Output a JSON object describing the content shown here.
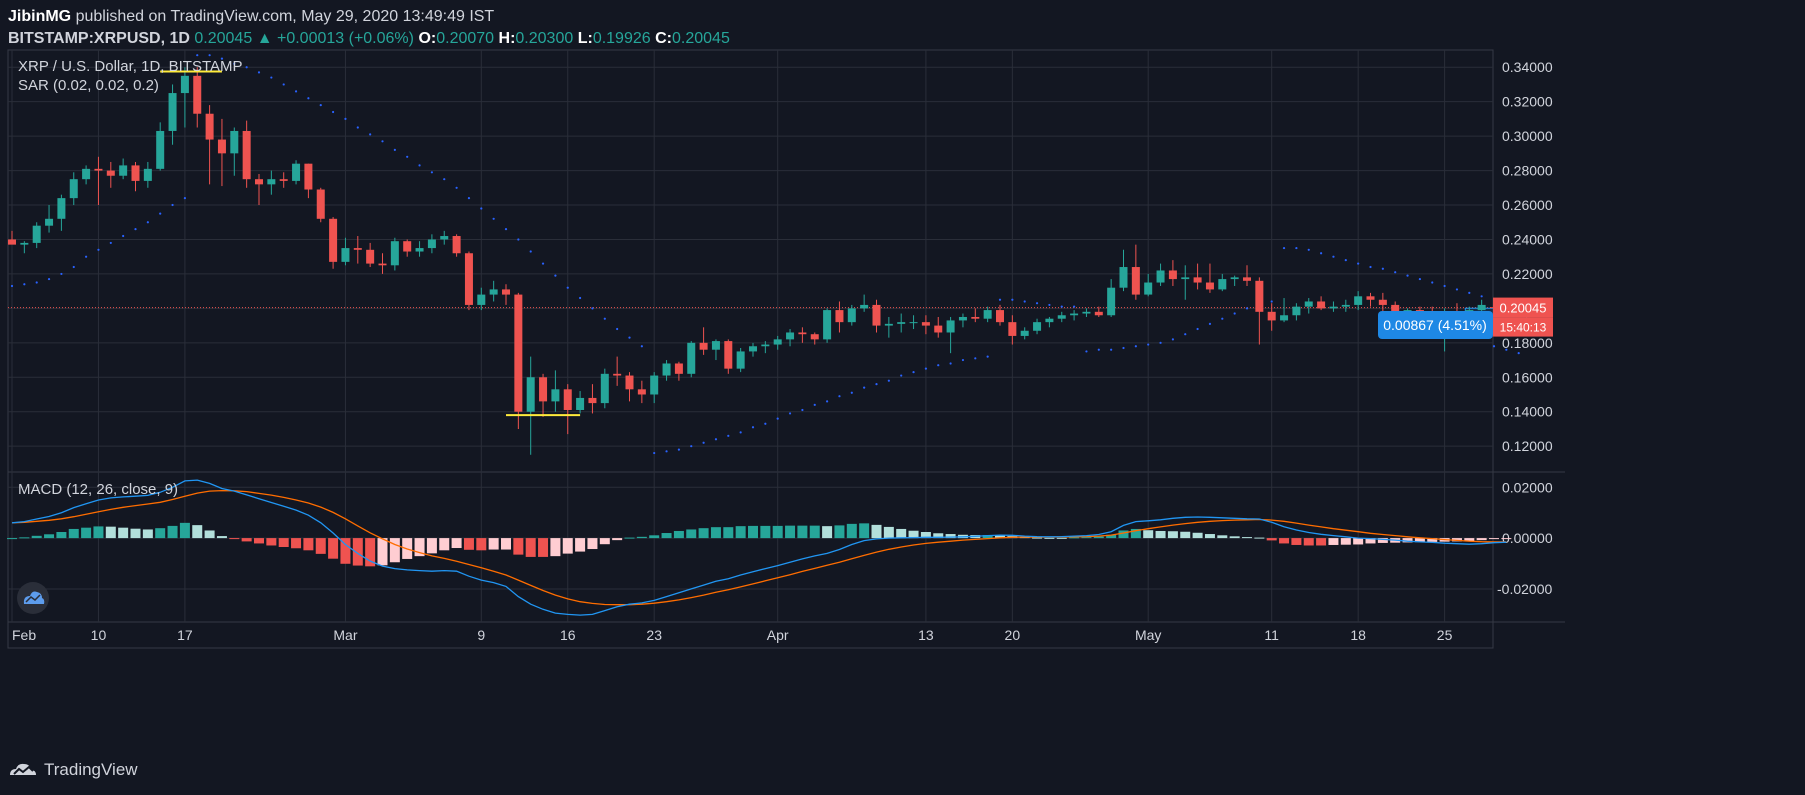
{
  "header": {
    "publisher": "JibinMG",
    "published_text": "published on TradingView.com, May 29, 2020 13:49:49 IST",
    "symbol": "BITSTAMP:XRPUSD, 1D",
    "last": "0.20045",
    "change": "+0.00013 (+0.06%)",
    "open_label": "O:",
    "open": "0.20070",
    "high_label": "H:",
    "high": "0.20300",
    "low_label": "L:",
    "low": "0.19926",
    "close_label": "C:",
    "close": "0.20045"
  },
  "legend": {
    "title": "XRP / U.S. Dollar, 1D, BITSTAMP",
    "sar": "SAR (0.02, 0.02, 0.2)",
    "macd": "MACD (12, 26, close, 9)"
  },
  "badges": {
    "measure": "0.00867 (4.51%)",
    "price": "0.20045",
    "countdown": "15:40:13"
  },
  "footer": {
    "brand": "TradingView",
    "logo_icon": "tradingview-logo-icon",
    "side_icon": "tradingview-cloud-icon"
  },
  "colors": {
    "up": "#26a69a",
    "down": "#ef5350",
    "bg": "#131722",
    "grid": "#2a2e39",
    "macd_line": "#2196f3",
    "signal_line": "#ff6d00",
    "sar": "#2962ff",
    "hist_up_strong": "#26a69a",
    "hist_up_weak": "#b2dfdb",
    "hist_down_strong": "#ef5350",
    "hist_down_weak": "#ffcdd2",
    "highlight": "#ffeb3b",
    "badge_blue": "#1e88e5"
  },
  "chart_data": {
    "type": "candlestick",
    "title": "XRP / U.S. Dollar, 1D, BITSTAMP",
    "x_ticks": [
      "Feb",
      "10",
      "17",
      "Mar",
      "9",
      "16",
      "23",
      "Apr",
      "13",
      "20",
      "May",
      "11",
      "18",
      "25"
    ],
    "price_ticks": [
      "0.34000",
      "0.32000",
      "0.30000",
      "0.28000",
      "0.26000",
      "0.24000",
      "0.22000",
      "0.20000",
      "0.18000",
      "0.16000",
      "0.14000",
      "0.12000"
    ],
    "macd_ticks": [
      "0.02000",
      "0.00000",
      "-0.02000"
    ],
    "ylim": [
      0.105,
      0.35
    ],
    "macd_ylim": [
      -0.033,
      0.026
    ],
    "last_price": 0.20045,
    "candles": [
      [
        0.24,
        0.245,
        0.238,
        0.237
      ],
      [
        0.237,
        0.239,
        0.232,
        0.238
      ],
      [
        0.238,
        0.25,
        0.235,
        0.248
      ],
      [
        0.248,
        0.26,
        0.244,
        0.252
      ],
      [
        0.252,
        0.266,
        0.245,
        0.264
      ],
      [
        0.264,
        0.279,
        0.26,
        0.275
      ],
      [
        0.275,
        0.283,
        0.272,
        0.281
      ],
      [
        0.281,
        0.288,
        0.26,
        0.28
      ],
      [
        0.28,
        0.285,
        0.27,
        0.277
      ],
      [
        0.277,
        0.287,
        0.275,
        0.283
      ],
      [
        0.283,
        0.285,
        0.268,
        0.274
      ],
      [
        0.274,
        0.285,
        0.27,
        0.281
      ],
      [
        0.281,
        0.308,
        0.28,
        0.303
      ],
      [
        0.303,
        0.33,
        0.295,
        0.325
      ],
      [
        0.325,
        0.34,
        0.305,
        0.335
      ],
      [
        0.335,
        0.34,
        0.305,
        0.313
      ],
      [
        0.313,
        0.318,
        0.272,
        0.298
      ],
      [
        0.298,
        0.31,
        0.271,
        0.29
      ],
      [
        0.29,
        0.305,
        0.277,
        0.303
      ],
      [
        0.303,
        0.309,
        0.27,
        0.275
      ],
      [
        0.275,
        0.278,
        0.26,
        0.272
      ],
      [
        0.272,
        0.28,
        0.266,
        0.275
      ],
      [
        0.275,
        0.279,
        0.27,
        0.274
      ],
      [
        0.274,
        0.286,
        0.272,
        0.284
      ],
      [
        0.284,
        0.284,
        0.264,
        0.269
      ],
      [
        0.269,
        0.27,
        0.25,
        0.252
      ],
      [
        0.252,
        0.253,
        0.223,
        0.227
      ],
      [
        0.227,
        0.241,
        0.225,
        0.235
      ],
      [
        0.235,
        0.242,
        0.226,
        0.234
      ],
      [
        0.234,
        0.238,
        0.224,
        0.226
      ],
      [
        0.226,
        0.232,
        0.22,
        0.225
      ],
      [
        0.225,
        0.241,
        0.222,
        0.239
      ],
      [
        0.239,
        0.24,
        0.23,
        0.233
      ],
      [
        0.233,
        0.239,
        0.23,
        0.235
      ],
      [
        0.235,
        0.243,
        0.232,
        0.24
      ],
      [
        0.24,
        0.245,
        0.237,
        0.242
      ],
      [
        0.242,
        0.243,
        0.23,
        0.232
      ],
      [
        0.232,
        0.233,
        0.199,
        0.202
      ],
      [
        0.202,
        0.212,
        0.199,
        0.208
      ],
      [
        0.208,
        0.216,
        0.204,
        0.211
      ],
      [
        0.211,
        0.214,
        0.202,
        0.208
      ],
      [
        0.208,
        0.209,
        0.13,
        0.14
      ],
      [
        0.14,
        0.172,
        0.115,
        0.16
      ],
      [
        0.16,
        0.162,
        0.137,
        0.146
      ],
      [
        0.146,
        0.164,
        0.14,
        0.153
      ],
      [
        0.153,
        0.156,
        0.127,
        0.141
      ],
      [
        0.141,
        0.152,
        0.139,
        0.148
      ],
      [
        0.148,
        0.156,
        0.139,
        0.145
      ],
      [
        0.145,
        0.165,
        0.142,
        0.162
      ],
      [
        0.162,
        0.172,
        0.155,
        0.161
      ],
      [
        0.161,
        0.163,
        0.146,
        0.153
      ],
      [
        0.153,
        0.158,
        0.145,
        0.15
      ],
      [
        0.15,
        0.163,
        0.145,
        0.161
      ],
      [
        0.161,
        0.17,
        0.158,
        0.168
      ],
      [
        0.168,
        0.169,
        0.158,
        0.162
      ],
      [
        0.162,
        0.181,
        0.16,
        0.18
      ],
      [
        0.18,
        0.189,
        0.173,
        0.176
      ],
      [
        0.176,
        0.182,
        0.17,
        0.181
      ],
      [
        0.181,
        0.182,
        0.162,
        0.165
      ],
      [
        0.165,
        0.177,
        0.163,
        0.175
      ],
      [
        0.175,
        0.18,
        0.172,
        0.178
      ],
      [
        0.178,
        0.181,
        0.174,
        0.179
      ],
      [
        0.179,
        0.184,
        0.176,
        0.182
      ],
      [
        0.182,
        0.188,
        0.178,
        0.186
      ],
      [
        0.186,
        0.189,
        0.18,
        0.185
      ],
      [
        0.185,
        0.186,
        0.179,
        0.182
      ],
      [
        0.182,
        0.2,
        0.18,
        0.199
      ],
      [
        0.199,
        0.204,
        0.186,
        0.192
      ],
      [
        0.192,
        0.202,
        0.19,
        0.2
      ],
      [
        0.2,
        0.208,
        0.198,
        0.202
      ],
      [
        0.202,
        0.205,
        0.186,
        0.19
      ],
      [
        0.19,
        0.195,
        0.183,
        0.191
      ],
      [
        0.191,
        0.197,
        0.186,
        0.192
      ],
      [
        0.192,
        0.196,
        0.188,
        0.192
      ],
      [
        0.192,
        0.196,
        0.185,
        0.19
      ],
      [
        0.19,
        0.195,
        0.183,
        0.186
      ],
      [
        0.186,
        0.195,
        0.174,
        0.193
      ],
      [
        0.193,
        0.197,
        0.189,
        0.195
      ],
      [
        0.195,
        0.2,
        0.192,
        0.194
      ],
      [
        0.194,
        0.201,
        0.192,
        0.199
      ],
      [
        0.199,
        0.202,
        0.19,
        0.192
      ],
      [
        0.192,
        0.196,
        0.179,
        0.184
      ],
      [
        0.184,
        0.189,
        0.182,
        0.187
      ],
      [
        0.187,
        0.194,
        0.185,
        0.192
      ],
      [
        0.192,
        0.195,
        0.189,
        0.194
      ],
      [
        0.194,
        0.198,
        0.192,
        0.196
      ],
      [
        0.196,
        0.199,
        0.193,
        0.197
      ],
      [
        0.197,
        0.2,
        0.195,
        0.198
      ],
      [
        0.198,
        0.201,
        0.195,
        0.196
      ],
      [
        0.196,
        0.217,
        0.195,
        0.212
      ],
      [
        0.212,
        0.234,
        0.21,
        0.224
      ],
      [
        0.224,
        0.237,
        0.205,
        0.208
      ],
      [
        0.208,
        0.22,
        0.207,
        0.215
      ],
      [
        0.215,
        0.226,
        0.213,
        0.222
      ],
      [
        0.222,
        0.228,
        0.213,
        0.217
      ],
      [
        0.217,
        0.225,
        0.205,
        0.218
      ],
      [
        0.218,
        0.226,
        0.211,
        0.215
      ],
      [
        0.215,
        0.226,
        0.209,
        0.211
      ],
      [
        0.211,
        0.22,
        0.21,
        0.217
      ],
      [
        0.217,
        0.219,
        0.213,
        0.218
      ],
      [
        0.218,
        0.225,
        0.213,
        0.216
      ],
      [
        0.216,
        0.218,
        0.179,
        0.198
      ],
      [
        0.198,
        0.203,
        0.187,
        0.193
      ],
      [
        0.193,
        0.206,
        0.192,
        0.196
      ],
      [
        0.196,
        0.203,
        0.193,
        0.201
      ],
      [
        0.201,
        0.206,
        0.197,
        0.204
      ],
      [
        0.204,
        0.207,
        0.199,
        0.2
      ],
      [
        0.2,
        0.204,
        0.198,
        0.201
      ],
      [
        0.201,
        0.205,
        0.198,
        0.202
      ],
      [
        0.202,
        0.21,
        0.199,
        0.207
      ],
      [
        0.207,
        0.209,
        0.201,
        0.205
      ],
      [
        0.205,
        0.209,
        0.198,
        0.202
      ],
      [
        0.202,
        0.204,
        0.188,
        0.193
      ],
      [
        0.193,
        0.2,
        0.19,
        0.199
      ],
      [
        0.199,
        0.201,
        0.195,
        0.198
      ],
      [
        0.198,
        0.201,
        0.192,
        0.193
      ],
      [
        0.193,
        0.2,
        0.175,
        0.197
      ],
      [
        0.197,
        0.203,
        0.192,
        0.194
      ],
      [
        0.194,
        0.201,
        0.193,
        0.199
      ],
      [
        0.199,
        0.205,
        0.197,
        0.202
      ],
      [
        0.2007,
        0.203,
        0.1993,
        0.2005
      ]
    ],
    "sar": [
      0.213,
      0.214,
      0.215,
      0.217,
      0.22,
      0.224,
      0.23,
      0.234,
      0.238,
      0.242,
      0.246,
      0.25,
      0.255,
      0.26,
      0.264,
      0.347,
      0.347,
      0.345,
      0.342,
      0.34,
      0.337,
      0.334,
      0.33,
      0.326,
      0.322,
      0.318,
      0.314,
      0.31,
      0.305,
      0.301,
      0.297,
      0.292,
      0.288,
      0.283,
      0.279,
      0.275,
      0.27,
      0.264,
      0.258,
      0.252,
      0.246,
      0.24,
      0.233,
      0.226,
      0.219,
      0.212,
      0.206,
      0.2,
      0.194,
      0.188,
      0.183,
      0.178,
      0.116,
      0.117,
      0.118,
      0.12,
      0.122,
      0.124,
      0.126,
      0.128,
      0.131,
      0.133,
      0.136,
      0.139,
      0.141,
      0.144,
      0.146,
      0.149,
      0.151,
      0.154,
      0.156,
      0.158,
      0.161,
      0.163,
      0.165,
      0.167,
      0.168,
      0.17,
      0.171,
      0.172,
      0.205,
      0.205,
      0.204,
      0.203,
      0.202,
      0.201,
      0.201,
      0.175,
      0.176,
      0.176,
      0.177,
      0.178,
      0.179,
      0.18,
      0.182,
      0.185,
      0.188,
      0.191,
      0.194,
      0.197,
      0.2,
      0.202,
      0.204,
      0.235,
      0.235,
      0.234,
      0.232,
      0.23,
      0.228,
      0.226,
      0.224,
      0.223,
      0.221,
      0.219,
      0.217,
      0.215,
      0.213,
      0.211,
      0.209,
      0.207,
      0.178,
      0.176,
      0.174
    ],
    "macd_line": [
      0.006,
      0.0065,
      0.0075,
      0.0085,
      0.01,
      0.012,
      0.0135,
      0.015,
      0.0158,
      0.0162,
      0.0165,
      0.0168,
      0.018,
      0.02,
      0.0225,
      0.0228,
      0.0215,
      0.0195,
      0.0185,
      0.017,
      0.0155,
      0.014,
      0.0125,
      0.011,
      0.009,
      0.006,
      0.002,
      -0.0025,
      -0.006,
      -0.009,
      -0.011,
      -0.012,
      -0.0125,
      -0.0128,
      -0.013,
      -0.0128,
      -0.013,
      -0.015,
      -0.0165,
      -0.0175,
      -0.019,
      -0.023,
      -0.026,
      -0.028,
      -0.0295,
      -0.03,
      -0.0303,
      -0.03,
      -0.0285,
      -0.027,
      -0.026,
      -0.0255,
      -0.0245,
      -0.023,
      -0.0215,
      -0.02,
      -0.0185,
      -0.017,
      -0.016,
      -0.0145,
      -0.0132,
      -0.012,
      -0.0108,
      -0.0095,
      -0.0082,
      -0.007,
      -0.006,
      -0.0045,
      -0.0025,
      -0.001,
      -0.0003,
      0.0,
      0.0001,
      0.0002,
      0.0003,
      0.0003,
      0.0004,
      0.0005,
      0.0007,
      0.001,
      0.0012,
      0.0011,
      0.0008,
      0.0006,
      0.0005,
      0.0006,
      0.0008,
      0.001,
      0.0014,
      0.0025,
      0.005,
      0.0065,
      0.0068,
      0.0072,
      0.0078,
      0.0082,
      0.0083,
      0.0082,
      0.008,
      0.0078,
      0.0076,
      0.0075,
      0.0062,
      0.0045,
      0.0032,
      0.0022,
      0.0015,
      0.001,
      0.0005,
      0.0,
      -0.0002,
      -0.0005,
      -0.0008,
      -0.0012,
      -0.0015,
      -0.0017,
      -0.002,
      -0.0022,
      -0.0024,
      -0.0022,
      -0.0018,
      -0.0016
    ],
    "signal_line": [
      0.006,
      0.0062,
      0.0066,
      0.007,
      0.0076,
      0.0084,
      0.0094,
      0.0104,
      0.0113,
      0.0121,
      0.0128,
      0.0134,
      0.0141,
      0.0152,
      0.0165,
      0.0177,
      0.0185,
      0.0187,
      0.0186,
      0.0183,
      0.0176,
      0.0169,
      0.016,
      0.015,
      0.0138,
      0.0122,
      0.0101,
      0.0076,
      0.0048,
      0.0021,
      -0.0003,
      -0.0025,
      -0.0043,
      -0.0057,
      -0.007,
      -0.008,
      -0.0091,
      -0.0104,
      -0.0117,
      -0.013,
      -0.0145,
      -0.0165,
      -0.0186,
      -0.0206,
      -0.0224,
      -0.0239,
      -0.025,
      -0.0257,
      -0.0261,
      -0.0262,
      -0.0262,
      -0.026,
      -0.0256,
      -0.025,
      -0.0243,
      -0.0234,
      -0.0224,
      -0.0213,
      -0.0203,
      -0.0192,
      -0.018,
      -0.0168,
      -0.0156,
      -0.0144,
      -0.0131,
      -0.0119,
      -0.0107,
      -0.0095,
      -0.0081,
      -0.0068,
      -0.0055,
      -0.0044,
      -0.0035,
      -0.0027,
      -0.0021,
      -0.0016,
      -0.0012,
      -0.0008,
      -0.0005,
      -0.0002,
      0.0001,
      0.0003,
      0.0004,
      0.0004,
      0.0004,
      0.0005,
      0.0005,
      0.0006,
      0.0008,
      0.0012,
      0.002,
      0.0029,
      0.0037,
      0.0044,
      0.0051,
      0.0057,
      0.0062,
      0.0066,
      0.0069,
      0.0071,
      0.0072,
      0.0073,
      0.0071,
      0.0066,
      0.0059,
      0.0051,
      0.0044,
      0.0037,
      0.0031,
      0.0025,
      0.0019,
      0.0014,
      0.001,
      0.0005,
      0.0001,
      -0.0002,
      -0.0006,
      -0.0009,
      -0.0012,
      -0.0014,
      -0.0015,
      -0.0015
    ]
  }
}
